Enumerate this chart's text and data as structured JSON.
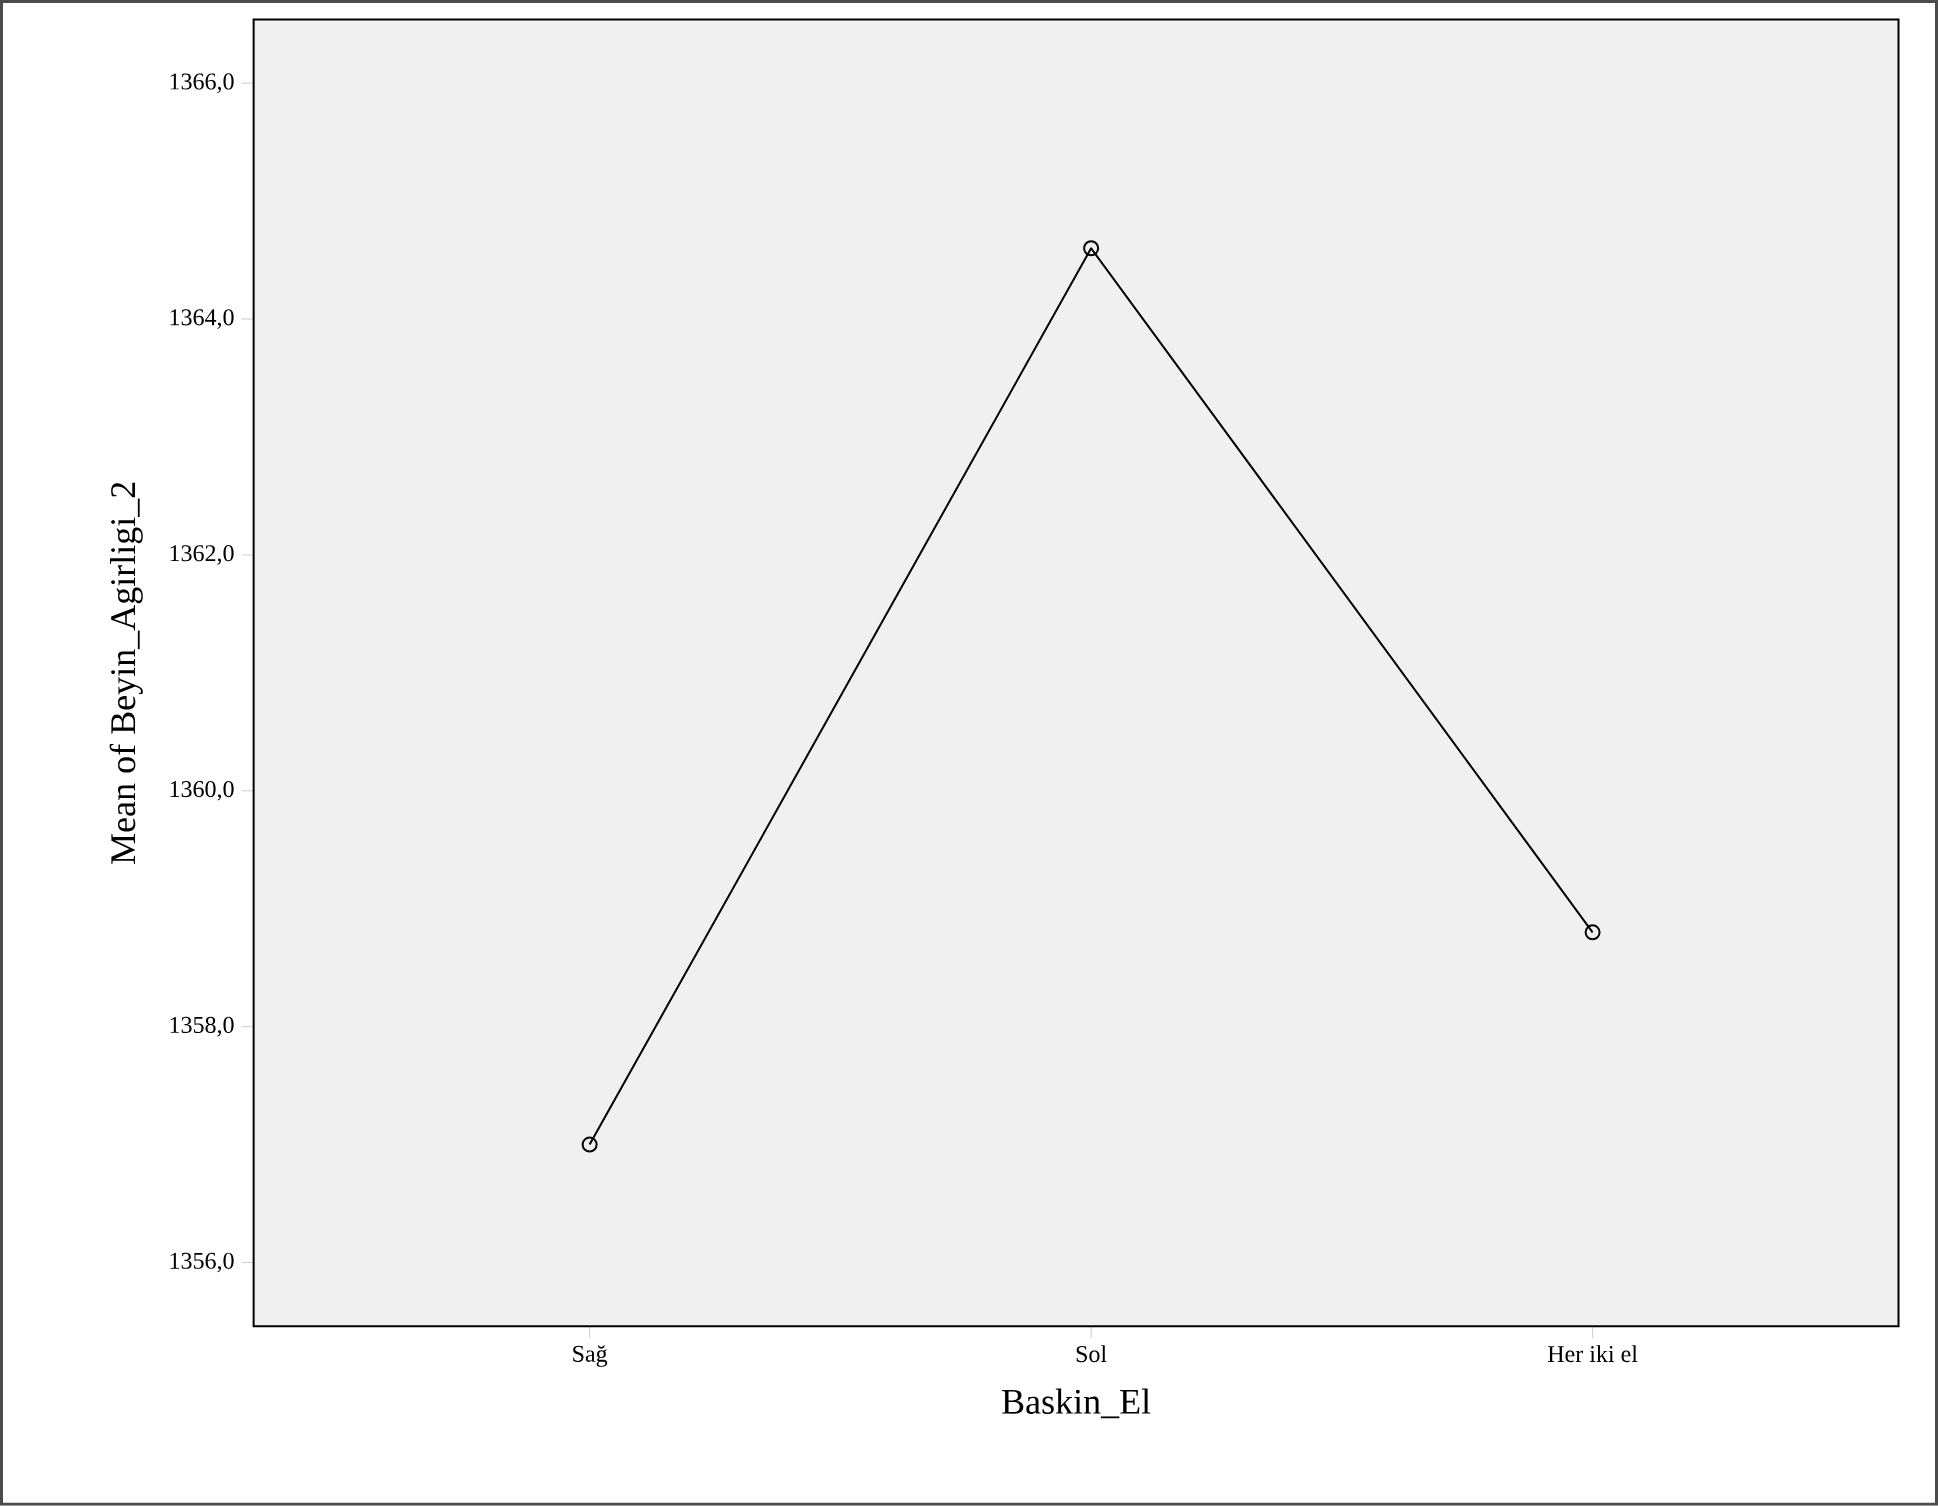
{
  "chart_data": {
    "type": "line",
    "xlabel": "Baskin_El",
    "ylabel": "Mean of Beyin_Agirligi_2",
    "categories": [
      "Sağ",
      "Sol",
      "Her iki el"
    ],
    "series": [
      {
        "color": "#000000",
        "values": [
          1357.0,
          1364.6,
          1358.8
        ]
      }
    ],
    "ylim": [
      1355.46,
      1366.54
    ],
    "yticks": [
      {
        "value": 1356,
        "label": "1356,0"
      },
      {
        "value": 1358,
        "label": "1358,0"
      },
      {
        "value": 1360,
        "label": "1360,0"
      },
      {
        "value": 1362,
        "label": "1362,0"
      },
      {
        "value": 1364,
        "label": "1364,0"
      },
      {
        "value": 1366,
        "label": "1366,0"
      }
    ],
    "marker": "circle",
    "line_style": "solid",
    "grid": false
  }
}
